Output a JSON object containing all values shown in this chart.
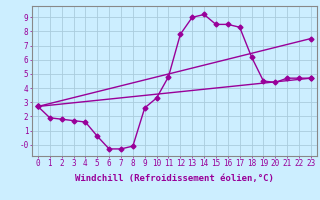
{
  "background_color": "#cceeff",
  "grid_color": "#aaccdd",
  "line_color": "#990099",
  "marker": "D",
  "markersize": 2.5,
  "linewidth": 1.0,
  "xlim": [
    -0.5,
    23.5
  ],
  "ylim": [
    -0.8,
    9.8
  ],
  "yticks": [
    0,
    1,
    2,
    3,
    4,
    5,
    6,
    7,
    8,
    9
  ],
  "ytick_labels": [
    "-0",
    "1",
    "2",
    "3",
    "4",
    "5",
    "6",
    "7",
    "8",
    "9"
  ],
  "xticks": [
    0,
    1,
    2,
    3,
    4,
    5,
    6,
    7,
    8,
    9,
    10,
    11,
    12,
    13,
    14,
    15,
    16,
    17,
    18,
    19,
    20,
    21,
    22,
    23
  ],
  "xlabel": "Windchill (Refroidissement éolien,°C)",
  "xlabel_fontsize": 6.5,
  "tick_fontsize": 5.5,
  "curve1_x": [
    0,
    1,
    2,
    3,
    4,
    5,
    6,
    7,
    8,
    9,
    10,
    11,
    12,
    13,
    14,
    15,
    16,
    17,
    18,
    19,
    20,
    21,
    22,
    23
  ],
  "curve1_y": [
    2.7,
    1.9,
    1.8,
    1.7,
    1.6,
    0.6,
    -0.3,
    -0.3,
    -0.1,
    2.6,
    3.3,
    4.8,
    7.8,
    9.0,
    9.2,
    8.5,
    8.5,
    8.3,
    6.2,
    4.5,
    4.4,
    4.7,
    4.7,
    4.7
  ],
  "curve2_x": [
    0,
    23
  ],
  "curve2_y": [
    2.7,
    7.5
  ],
  "curve3_x": [
    0,
    23
  ],
  "curve3_y": [
    2.7,
    4.7
  ],
  "spine_color": "#888888"
}
